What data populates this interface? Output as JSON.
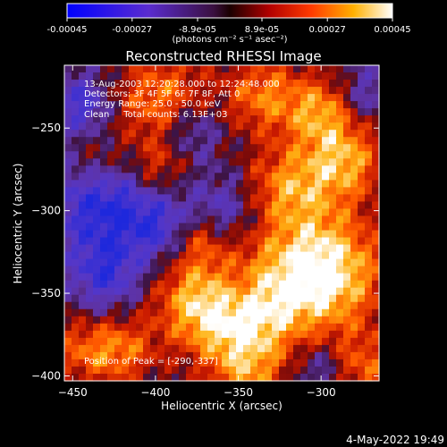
{
  "colorbar": {
    "ticks": [
      "-0.00045",
      "-0.00027",
      "-8.9e-05",
      "8.9e-05",
      "0.00027",
      "0.00045"
    ],
    "values": [
      -0.00045,
      -0.00027,
      -8.9e-05,
      8.9e-05,
      0.00027,
      0.00045
    ],
    "range": [
      -0.00045,
      0.00045
    ],
    "unit_label": "(photons cm⁻² s⁻¹ asec⁻²)",
    "colormap": "rhessi_blue_purple_red_yellow_white"
  },
  "chart_data": {
    "type": "heatmap",
    "title": "Reconstructed RHESSI Image",
    "xlabel": "Heliocentric X (arcsec)",
    "ylabel": "Heliocentric Y (arcsec)",
    "xlim": [
      -455,
      -265
    ],
    "ylim": [
      -403,
      -212
    ],
    "xticks": [
      -450,
      -400,
      -350,
      -300
    ],
    "yticks": [
      -250,
      -300,
      -350,
      -400
    ],
    "xtick_labels": [
      "−450",
      "−400",
      "−350",
      "−300"
    ],
    "ytick_labels": [
      "−250",
      "−300",
      "−350",
      "−400"
    ],
    "grid": false,
    "peak_position": [
      -290,
      -337
    ],
    "annotations": {
      "time": "13-Aug-2003 12:20:28.000 to 12:24:48.000",
      "detectors": "Detectors: 3F 4F 5F 6F 7F 8F, Att 0",
      "energy": "Energy Range: 25.0 - 50.0 keV",
      "clean": "Clean     Total counts: 6.13E+03",
      "peak": "Position of Peak = [-290,-337]"
    }
  },
  "footer": {
    "date": "4-May-2022 19:49"
  }
}
